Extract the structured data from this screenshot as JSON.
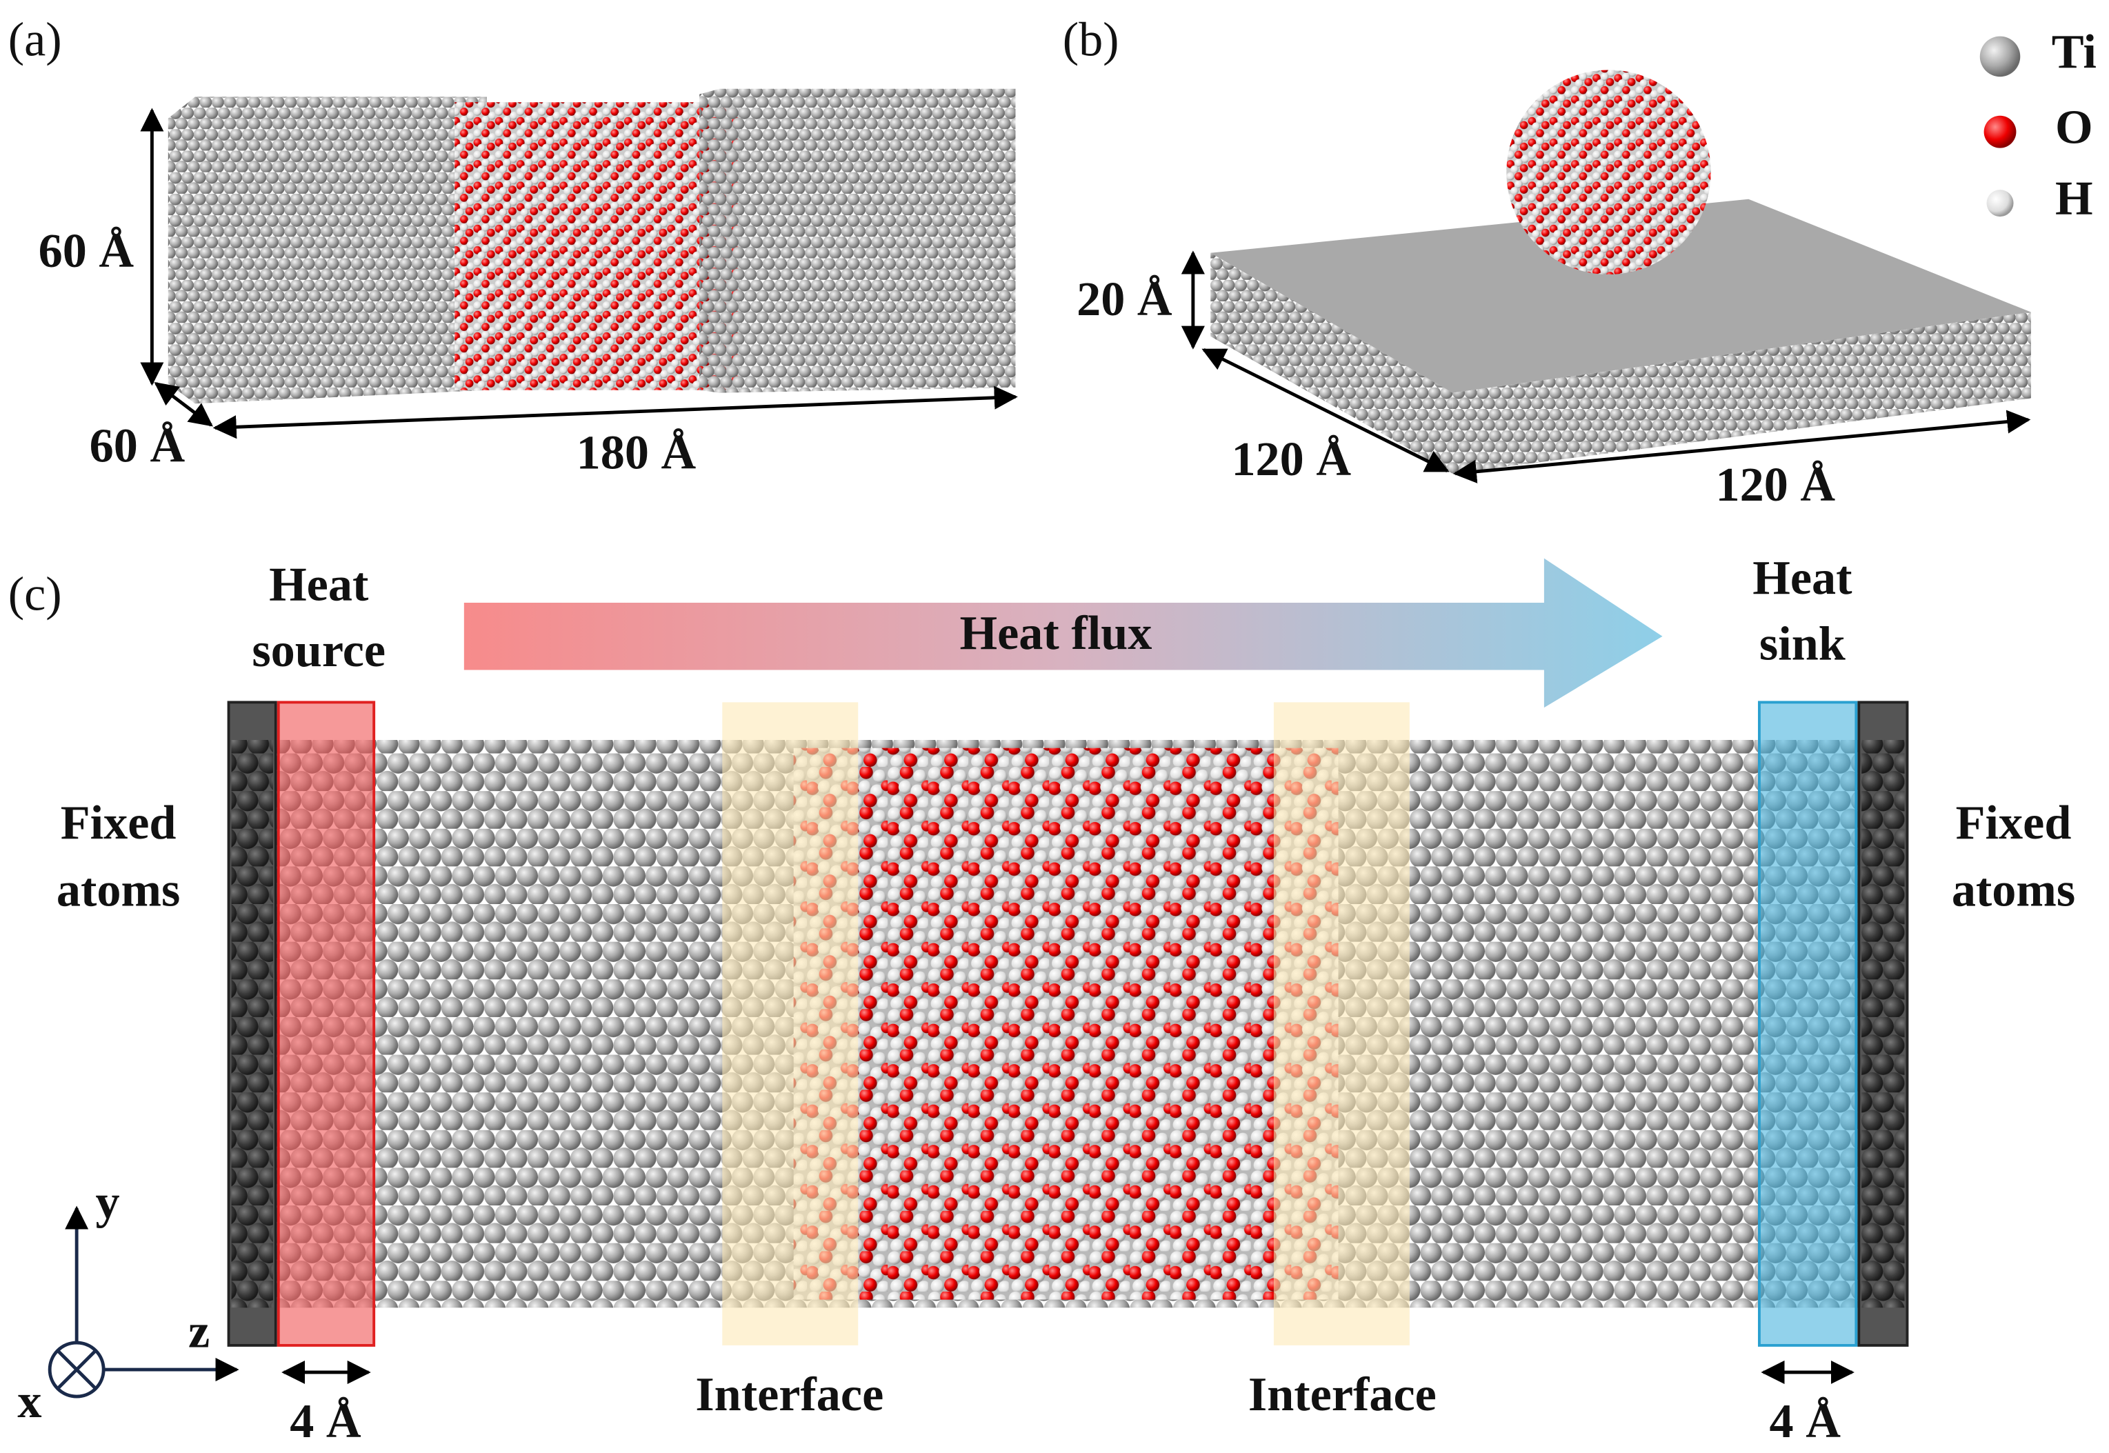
{
  "panel_a": {
    "label": "(a)",
    "height": "60 Å",
    "depth": "60 Å",
    "length": "180 Å"
  },
  "panel_b": {
    "label": "(b)",
    "thickness": "20 Å",
    "width": "120 Å",
    "length": "120 Å",
    "legend": [
      "Ti",
      "O",
      "H"
    ]
  },
  "panel_c": {
    "label": "(c)",
    "heat_source": [
      "Heat",
      "source"
    ],
    "heat_flux": "Heat flux",
    "heat_sink": [
      "Heat",
      "sink"
    ],
    "fixed_left": [
      "Fixed",
      "atoms"
    ],
    "fixed_right": [
      "Fixed",
      "atoms"
    ],
    "interface_left": "Interface",
    "interface_right": "Interface",
    "source_width": "4 Å",
    "sink_width": "4 Å",
    "axes": {
      "y": "y",
      "z": "z",
      "x": "x"
    }
  }
}
